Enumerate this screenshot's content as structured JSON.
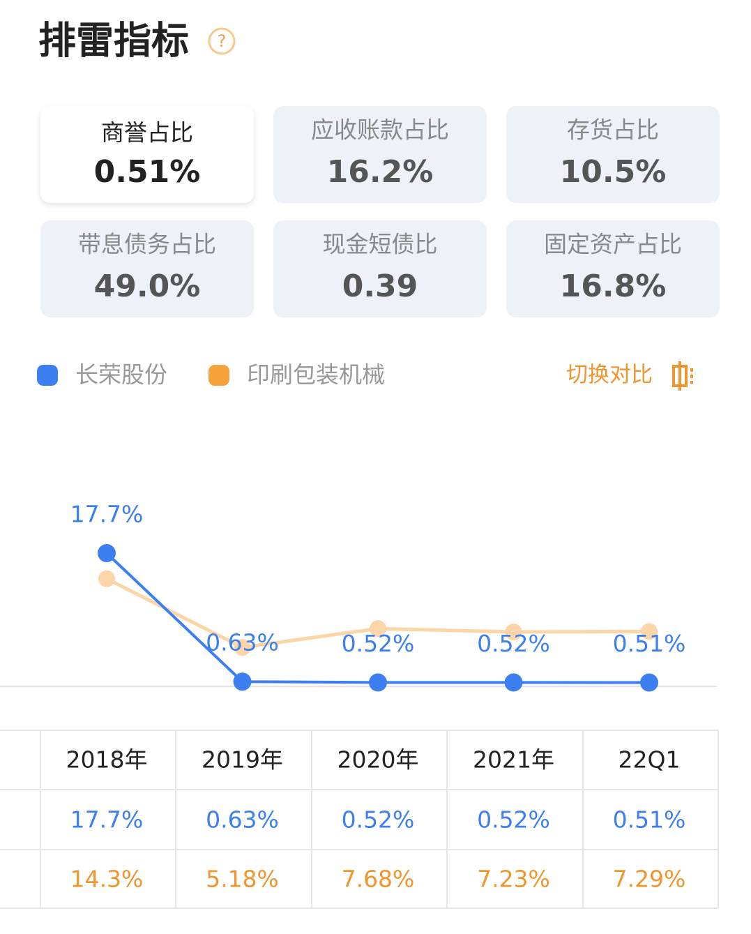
{
  "header": {
    "title": "排雷指标",
    "help": "?"
  },
  "metrics": [
    {
      "label": "商誉占比",
      "value": "0.51%"
    },
    {
      "label": "应收账款占比",
      "value": "16.2%"
    },
    {
      "label": "存货占比",
      "value": "10.5%"
    },
    {
      "label": "带息债务占比",
      "value": "49.0%"
    },
    {
      "label": "现金短债比",
      "value": "0.39"
    },
    {
      "label": "固定资产占比",
      "value": "16.8%"
    }
  ],
  "toggle": "切换对比",
  "chart_data": {
    "type": "line",
    "categories": [
      "2018年",
      "2019年",
      "2020年",
      "2021年",
      "22Q1"
    ],
    "series": [
      {
        "name": "长荣股份",
        "color": "#3d7ff0",
        "values": [
          17.7,
          0.63,
          0.52,
          0.52,
          0.51
        ],
        "value_labels": [
          "17.7%",
          "0.63%",
          "0.52%",
          "0.52%",
          "0.51%"
        ]
      },
      {
        "name": "印刷包装机械",
        "color": "#f7a23a",
        "values": [
          14.3,
          5.18,
          7.68,
          7.23,
          7.29
        ],
        "value_labels": [
          "14.3%",
          "5.18%",
          "7.68%",
          "7.23%",
          "7.29%"
        ]
      }
    ]
  }
}
